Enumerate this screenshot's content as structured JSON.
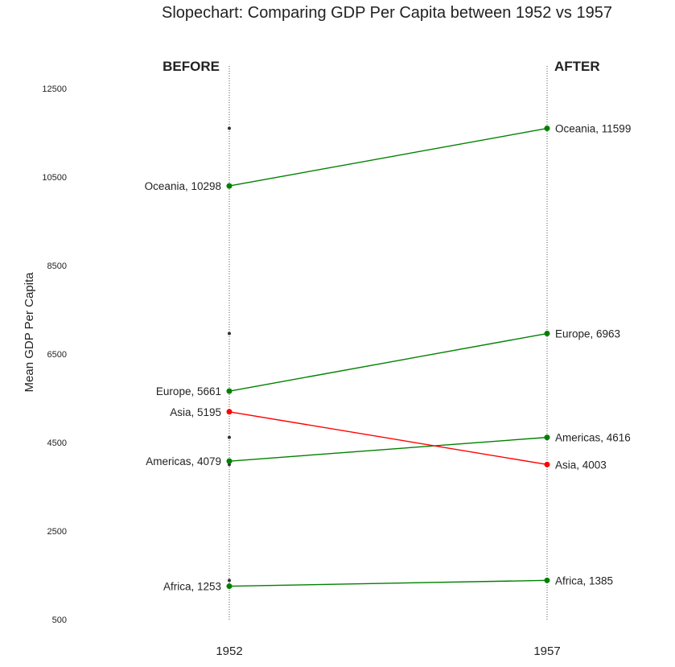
{
  "chart_data": {
    "type": "line",
    "title": "Slopechart: Comparing GDP Per Capita between 1952 vs 1957",
    "ylabel": "Mean GDP Per Capita",
    "xlabel": "",
    "headers": {
      "before": "BEFORE",
      "after": "AFTER"
    },
    "x": [
      "1952",
      "1957"
    ],
    "yticks": [
      500,
      2500,
      4500,
      6500,
      8500,
      10500,
      12500
    ],
    "ylim": [
      500,
      13000
    ],
    "grid": false,
    "colors": {
      "increase": "#008000",
      "decrease": "#ff0000",
      "marker": "#333333",
      "guide": "#555555"
    },
    "series": [
      {
        "name": "Africa",
        "values": [
          1253,
          1385
        ],
        "labels": [
          "Africa, 1253",
          "Africa, 1385"
        ]
      },
      {
        "name": "Americas",
        "values": [
          4079,
          4616
        ],
        "labels": [
          "Americas, 4079",
          "Americas, 4616"
        ]
      },
      {
        "name": "Asia",
        "values": [
          5195,
          4003
        ],
        "labels": [
          "Asia, 5195",
          "Asia, 4003"
        ]
      },
      {
        "name": "Europe",
        "values": [
          5661,
          6963
        ],
        "labels": [
          "Europe, 5661",
          "Europe, 6963"
        ]
      },
      {
        "name": "Oceania",
        "values": [
          10298,
          11599
        ],
        "labels": [
          "Oceania, 10298",
          "Oceania, 11599"
        ]
      }
    ]
  }
}
